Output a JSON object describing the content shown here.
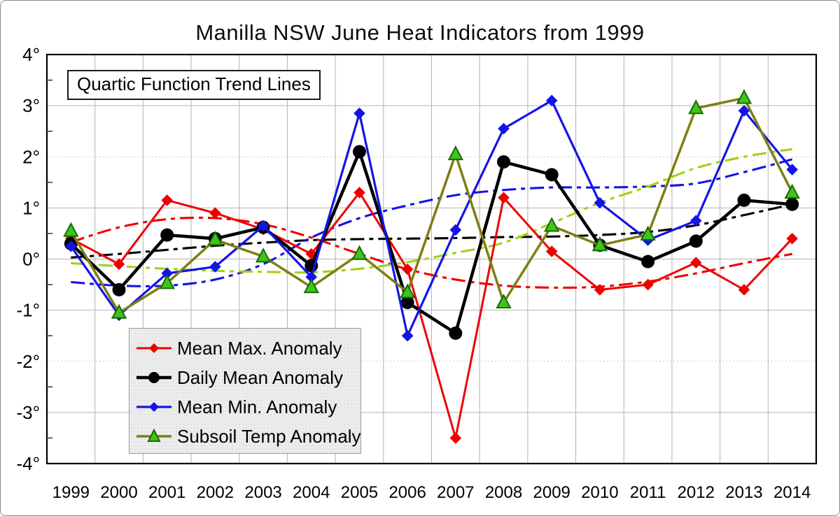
{
  "chart": {
    "title": "Manilla NSW June Heat Indicators from 1999",
    "note_box": "Quartic Function Trend Lines"
  },
  "chart_data": {
    "type": "line",
    "title": "Manilla NSW June Heat Indicators from 1999",
    "annotation": "Quartic Function Trend Lines",
    "categories": [
      "1999",
      "2000",
      "2001",
      "2002",
      "2003",
      "2004",
      "2005",
      "2006",
      "2007",
      "2008",
      "2009",
      "2010",
      "2011",
      "2012",
      "2013",
      "2014"
    ],
    "y_tick_labels": [
      "4°",
      "3°",
      "2°",
      "1°",
      "0°",
      "-1°",
      "-2°",
      "-3°",
      "-4°"
    ],
    "ylim": [
      -4,
      4
    ],
    "grid": true,
    "legend_position": "lower-left",
    "colors": {
      "grid": "#b2b2b2",
      "grid_dotted": "#c9c9c9",
      "frame": "#000000",
      "red": "#ee0000",
      "black": "#000000",
      "blue": "#1414e6",
      "olive": "#7e7e14",
      "triangle_fill": "#3fc41e",
      "triangle_stroke": "#156c00",
      "lime_trend": "#a2d117"
    },
    "series": [
      {
        "name": "Mean Max. Anomaly",
        "color": "#ee0000",
        "marker": "diamond",
        "width": 3,
        "values": [
          0.4,
          -0.1,
          1.15,
          0.9,
          0.58,
          0.1,
          1.3,
          -0.2,
          -3.5,
          1.2,
          0.15,
          -0.6,
          -0.5,
          -0.07,
          -0.6,
          0.4
        ]
      },
      {
        "name": "Daily Mean Anomaly",
        "color": "#000000",
        "marker": "circle",
        "width": 4.5,
        "values": [
          0.3,
          -0.6,
          0.47,
          0.4,
          0.62,
          -0.13,
          2.1,
          -0.85,
          -1.45,
          1.9,
          1.65,
          0.27,
          -0.05,
          0.35,
          1.15,
          1.07
        ]
      },
      {
        "name": "Mean Min. Anomaly",
        "color": "#1414e6",
        "marker": "diamond",
        "width": 3.2,
        "values": [
          0.25,
          -1.1,
          -0.28,
          -0.15,
          0.65,
          -0.35,
          2.85,
          -1.5,
          0.57,
          2.55,
          3.1,
          1.1,
          0.37,
          0.75,
          2.9,
          1.75
        ]
      },
      {
        "name": "Subsoil Temp Anomaly",
        "color": "#7e7e14",
        "marker": "triangle",
        "width": 3.5,
        "values": [
          0.55,
          -1.05,
          -0.47,
          0.38,
          0.05,
          -0.55,
          0.1,
          -0.65,
          2.05,
          -0.85,
          0.65,
          0.27,
          0.48,
          2.95,
          3.15,
          1.3
        ]
      }
    ],
    "trend_lines": [
      {
        "series": "Mean Max. Anomaly",
        "style": "dash-dot",
        "color": "#ee0000",
        "values": [
          0.33,
          0.62,
          0.78,
          0.8,
          0.68,
          0.42,
          0.1,
          -0.2,
          -0.4,
          -0.52,
          -0.56,
          -0.54,
          -0.44,
          -0.28,
          -0.08,
          0.1
        ]
      },
      {
        "series": "Daily Mean Anomaly",
        "style": "dash-dot",
        "color": "#000000",
        "values": [
          0.03,
          0.1,
          0.18,
          0.26,
          0.32,
          0.37,
          0.39,
          0.4,
          0.41,
          0.43,
          0.44,
          0.47,
          0.53,
          0.66,
          0.86,
          1.07
        ]
      },
      {
        "series": "Mean Min. Anomaly",
        "style": "dash-dot",
        "color": "#1414e6",
        "values": [
          -0.45,
          -0.52,
          -0.52,
          -0.4,
          -0.1,
          0.42,
          0.8,
          1.05,
          1.25,
          1.35,
          1.4,
          1.4,
          1.42,
          1.48,
          1.7,
          1.95
        ]
      },
      {
        "series": "Subsoil Temp Anomaly",
        "style": "dash-dot",
        "color": "#a2d117",
        "values": [
          -0.08,
          -0.14,
          -0.19,
          -0.23,
          -0.25,
          -0.26,
          -0.19,
          -0.06,
          0.12,
          0.32,
          0.7,
          1.1,
          1.42,
          1.78,
          2.0,
          2.15
        ]
      }
    ]
  }
}
